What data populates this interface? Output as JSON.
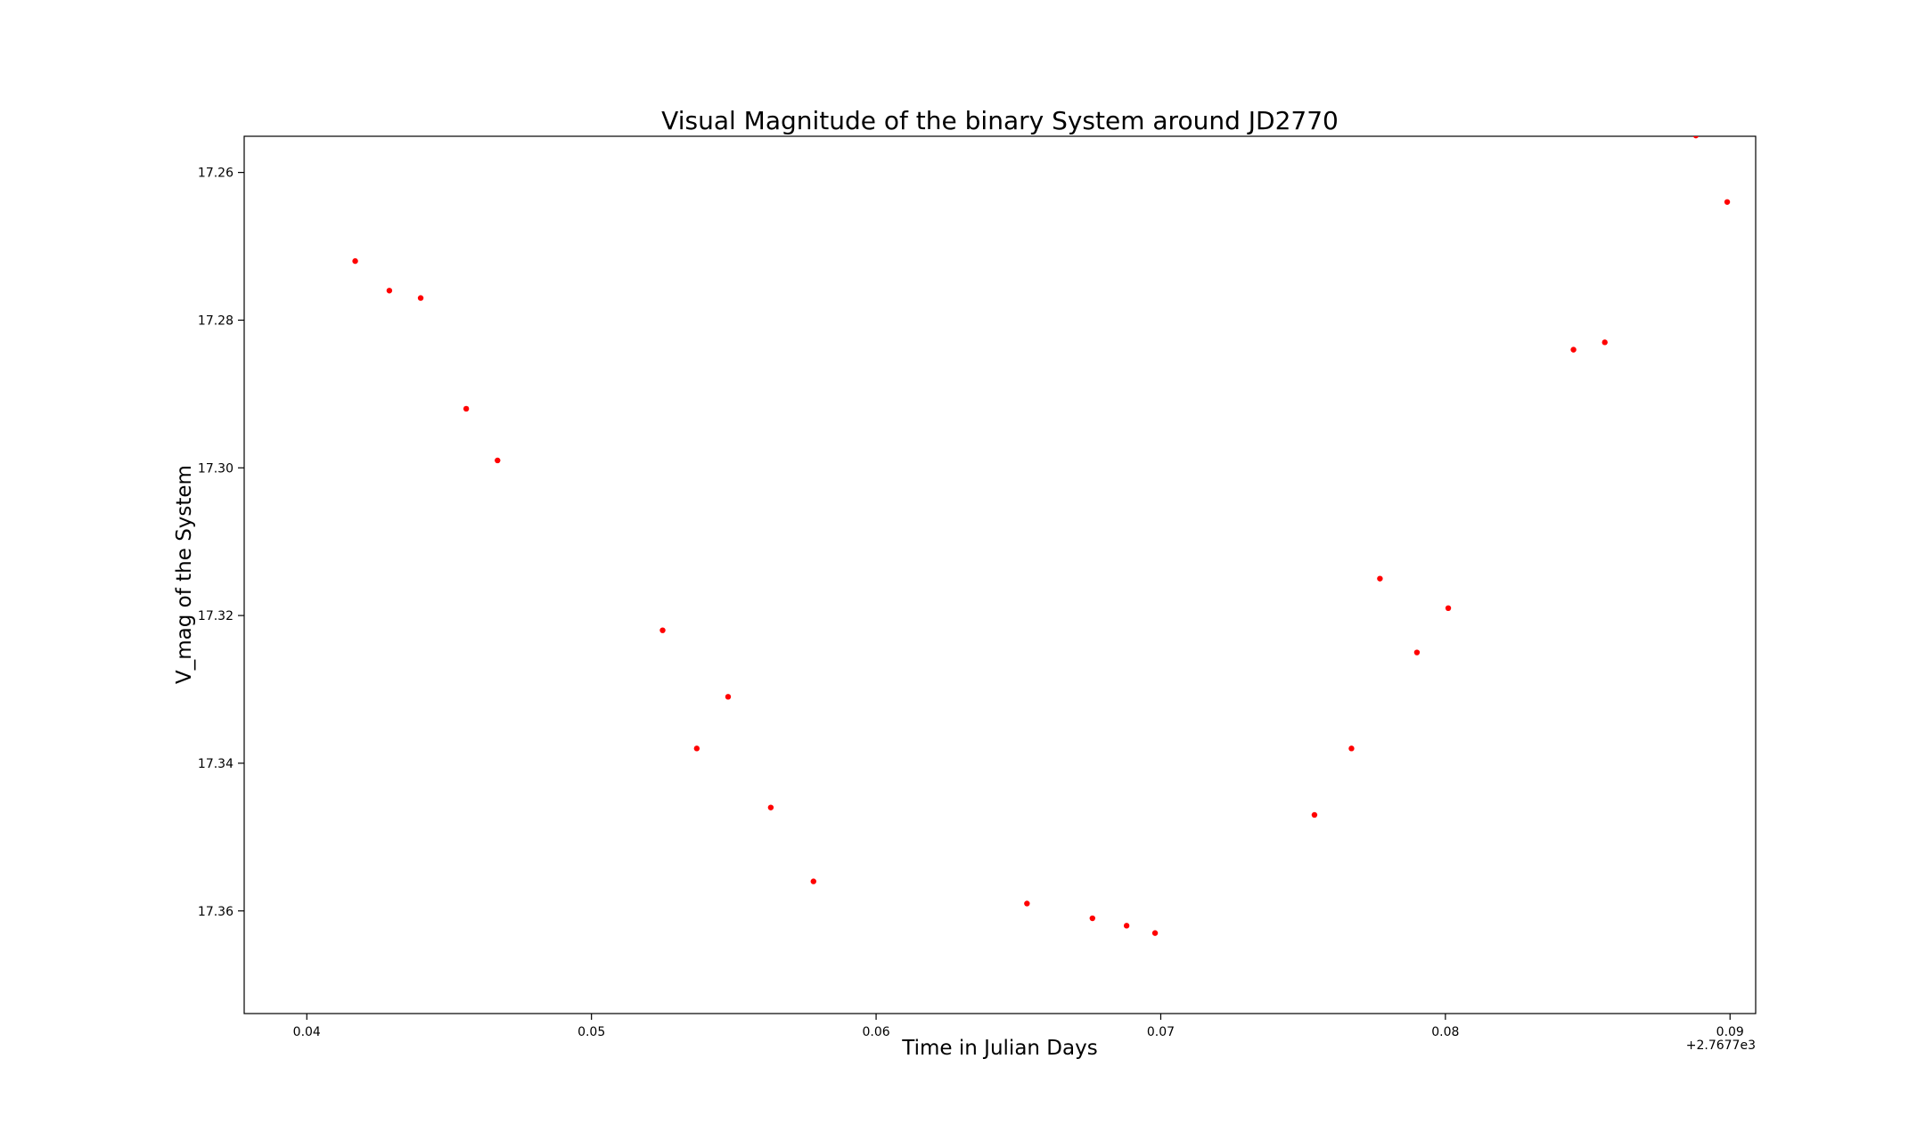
{
  "chart_data": {
    "type": "scatter",
    "title": "Visual Magnitude of the binary System around JD2770",
    "xlabel": "Time in Julian Days",
    "ylabel": "V_mag of the System",
    "x_offset_label": "+2.7677e3",
    "xlim": [
      0.0378,
      0.0909
    ],
    "ylim": [
      17.2551,
      17.3739
    ],
    "x_ticks": [
      0.04,
      0.05,
      0.06,
      0.07,
      0.08,
      0.09
    ],
    "x_tick_labels": [
      "0.04",
      "0.05",
      "0.06",
      "0.07",
      "0.08",
      "0.09"
    ],
    "y_ticks": [
      17.26,
      17.28,
      17.3,
      17.32,
      17.34,
      17.36
    ],
    "y_tick_labels": [
      "17.26",
      "17.28",
      "17.30",
      "17.32",
      "17.34",
      "17.36"
    ],
    "grid": false,
    "marker_color": "#ff0000",
    "points": [
      {
        "x": 0.0417,
        "y": 17.272
      },
      {
        "x": 0.0429,
        "y": 17.276
      },
      {
        "x": 0.044,
        "y": 17.277
      },
      {
        "x": 0.0456,
        "y": 17.292
      },
      {
        "x": 0.0467,
        "y": 17.299
      },
      {
        "x": 0.0525,
        "y": 17.322
      },
      {
        "x": 0.0537,
        "y": 17.338
      },
      {
        "x": 0.0548,
        "y": 17.331
      },
      {
        "x": 0.0563,
        "y": 17.346
      },
      {
        "x": 0.0578,
        "y": 17.356
      },
      {
        "x": 0.0653,
        "y": 17.359
      },
      {
        "x": 0.0676,
        "y": 17.361
      },
      {
        "x": 0.0688,
        "y": 17.362
      },
      {
        "x": 0.0698,
        "y": 17.363
      },
      {
        "x": 0.0754,
        "y": 17.347
      },
      {
        "x": 0.0767,
        "y": 17.338
      },
      {
        "x": 0.0777,
        "y": 17.315
      },
      {
        "x": 0.079,
        "y": 17.325
      },
      {
        "x": 0.0801,
        "y": 17.319
      },
      {
        "x": 0.0845,
        "y": 17.284
      },
      {
        "x": 0.0856,
        "y": 17.283
      },
      {
        "x": 0.0888,
        "y": 17.255
      },
      {
        "x": 0.0899,
        "y": 17.264
      }
    ]
  }
}
